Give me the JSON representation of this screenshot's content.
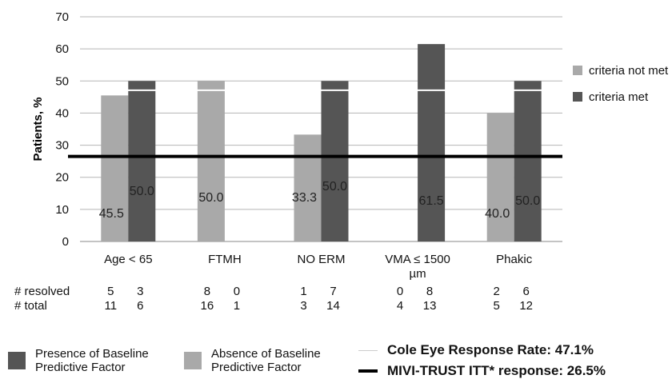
{
  "chart_data": {
    "type": "bar",
    "categories": [
      "Age < 65",
      "FTMH",
      "NO ERM",
      "VMA ≤ 1500 µm",
      "Phakic"
    ],
    "category_lines": [
      [
        "Age < 65"
      ],
      [
        "FTMH"
      ],
      [
        "NO ERM"
      ],
      [
        "VMA ≤ 1500",
        "µm"
      ],
      [
        "Phakic"
      ]
    ],
    "series": [
      {
        "name": "criteria not met",
        "values": [
          45.5,
          50.0,
          33.3,
          null,
          40.0
        ],
        "color": "#a9a9a9",
        "labels": [
          "45.5",
          "50.0",
          "33.3",
          "",
          "40.0"
        ]
      },
      {
        "name": "criteria met",
        "values": [
          50.0,
          null,
          50.0,
          61.5,
          50.0
        ],
        "color": "#555555",
        "labels": [
          "50.0",
          "",
          "50.0",
          "61.5",
          "50.0"
        ]
      }
    ],
    "ylabel": "Patients, %",
    "ylim": [
      0,
      70
    ],
    "yticks": [
      0,
      10,
      20,
      30,
      40,
      50,
      60,
      70
    ],
    "grid": true,
    "legend_position": "right",
    "reference_lines": [
      {
        "name": "Cole Eye Response Rate: 47.1%",
        "value": 47.1,
        "color": "#ffffff",
        "style": "thin-white"
      },
      {
        "name": "MIVI-TRUST ITT* response: 26.5%",
        "value": 26.5,
        "color": "#000000",
        "style": "thick-black"
      }
    ]
  },
  "table": {
    "row_labels": [
      "# resolved",
      "# total"
    ],
    "resolved": [
      [
        "5",
        "3"
      ],
      [
        "8",
        "0"
      ],
      [
        "1",
        "7"
      ],
      [
        "0",
        "8"
      ],
      [
        "2",
        "6"
      ]
    ],
    "total": [
      [
        "11",
        "6"
      ],
      [
        "16",
        "1"
      ],
      [
        "3",
        "14"
      ],
      [
        "4",
        "13"
      ],
      [
        "5",
        "12"
      ]
    ]
  },
  "bottom_legend": {
    "presence_label": "Presence of Baseline Predictive Factor",
    "absence_label": "Absence of Baseline Predictive Factor",
    "presence_color": "#555555",
    "absence_color": "#a9a9a9"
  }
}
